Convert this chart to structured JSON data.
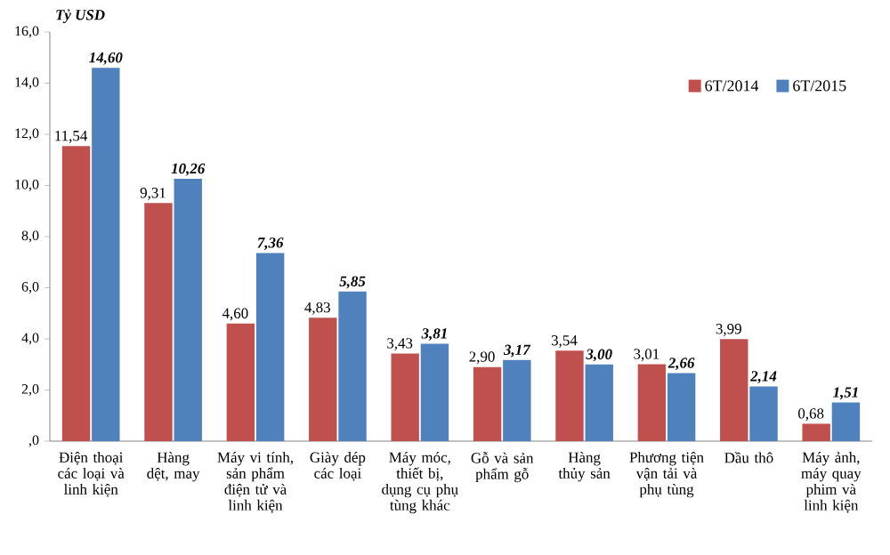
{
  "chart_data": {
    "type": "bar",
    "ylabel": "Tỷ USD",
    "categories": [
      "Điện thoại các loại và linh kiện",
      "Hàng dệt, may",
      "Máy vi tính, sản phẩm điện tử và linh kiện",
      "Giày dép các loại",
      "Máy móc, thiết bị, dụng cụ phụ tùng khác",
      "Gỗ và sản phẩm gỗ",
      "Hàng thủy sản",
      "Phương tiện vận tải và phụ tùng",
      "Dầu thô",
      "Máy ảnh, máy quay phim và linh kiện"
    ],
    "series": [
      {
        "name": "6T/2014",
        "color": "#c0504d",
        "values": [
          11.54,
          9.31,
          4.6,
          4.83,
          3.43,
          2.9,
          3.54,
          3.01,
          3.99,
          0.68
        ],
        "value_labels": [
          "11,54",
          "9,31",
          "4,60",
          "4,83",
          "3,43",
          "2,90",
          "3,54",
          "3,01",
          "3,99",
          "0,68"
        ]
      },
      {
        "name": "6T/2015",
        "color": "#4f81bd",
        "values": [
          14.6,
          10.26,
          7.36,
          5.85,
          3.81,
          3.17,
          3.0,
          2.66,
          2.14,
          1.51
        ],
        "value_labels": [
          "14,60",
          "10,26",
          "7,36",
          "5,85",
          "3,81",
          "3,17",
          "3,00",
          "2,66",
          "2,14",
          "1,51"
        ]
      }
    ],
    "ylim": [
      0,
      16
    ],
    "yticks": [
      {
        "value": 0,
        "label": ",0"
      },
      {
        "value": 2,
        "label": "2,0"
      },
      {
        "value": 4,
        "label": "4,0"
      },
      {
        "value": 6,
        "label": "6,0"
      },
      {
        "value": 8,
        "label": "8,0"
      },
      {
        "value": 10,
        "label": "10,0"
      },
      {
        "value": 12,
        "label": "12,0"
      },
      {
        "value": 14,
        "label": "14,0"
      },
      {
        "value": 16,
        "label": "16,0"
      }
    ],
    "legend": "top right",
    "grid": false
  }
}
